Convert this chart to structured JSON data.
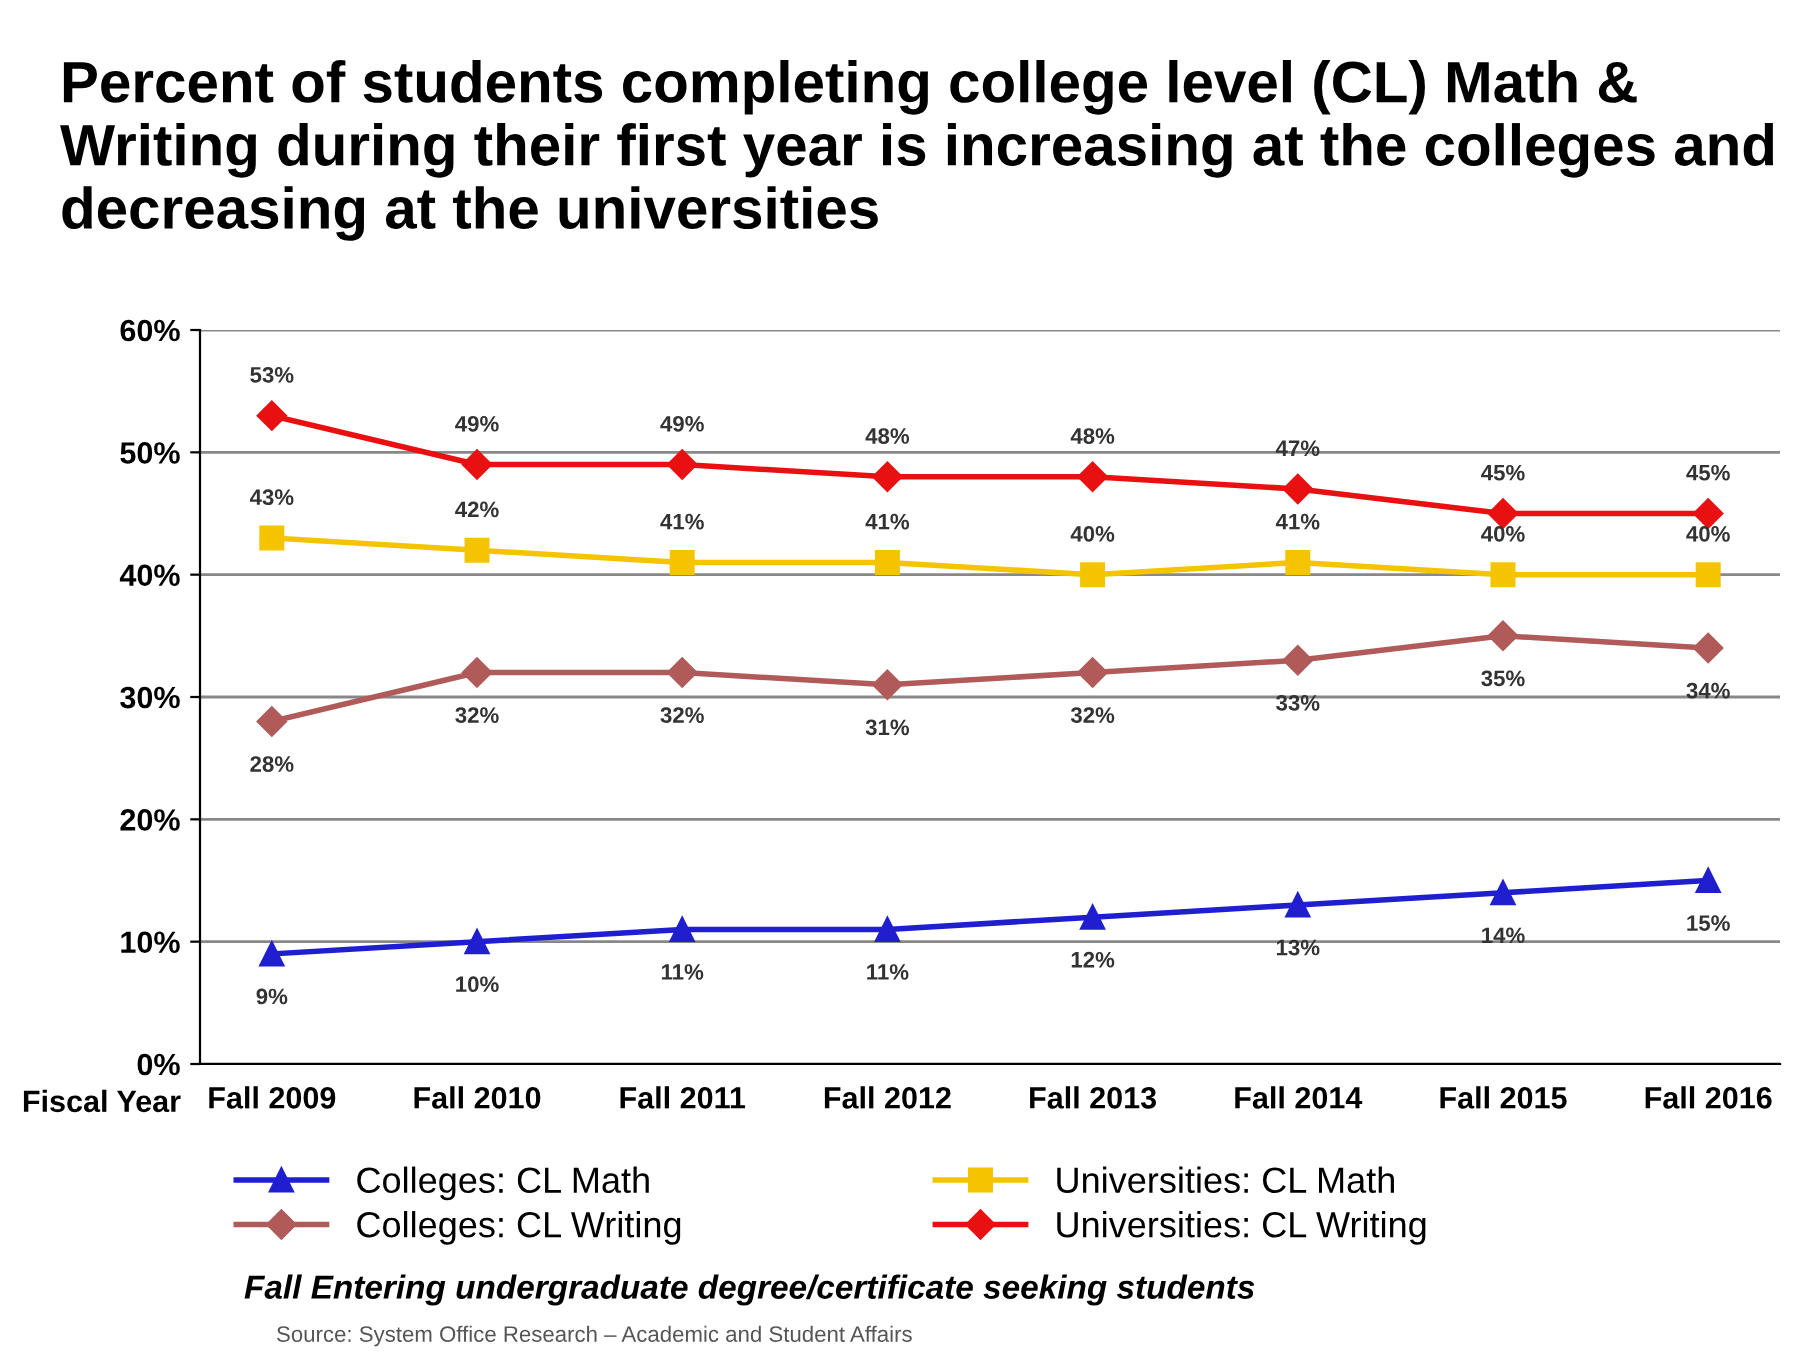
{
  "chart_data": {
    "type": "line",
    "title": "Percent of students completing college level (CL) Math & Writing during their first year is increasing at the colleges and decreasing at the universities",
    "xlabel": "Fiscal Year",
    "categories": [
      "Fall 2009",
      "Fall 2010",
      "Fall 2011",
      "Fall 2012",
      "Fall 2013",
      "Fall 2014",
      "Fall 2015",
      "Fall 2016"
    ],
    "series": [
      {
        "name": "Colleges: CL Math",
        "color": "#1f1fd0",
        "marker": "triangle",
        "values": [
          9,
          10,
          11,
          11,
          12,
          13,
          14,
          15
        ],
        "value_labels": [
          "9%",
          "10%",
          "11%",
          "11%",
          "12%",
          "13%",
          "14%",
          "15%"
        ]
      },
      {
        "name": "Universities: CL Math",
        "color": "#f5c400",
        "marker": "square",
        "values": [
          43,
          42,
          41,
          41,
          40,
          41,
          40,
          40
        ],
        "value_labels": [
          "43%",
          "42%",
          "41%",
          "41%",
          "40%",
          "41%",
          "40%",
          "40%"
        ]
      },
      {
        "name": "Colleges: CL Writing",
        "color": "#b05a5a",
        "marker": "diamond",
        "values": [
          28,
          32,
          32,
          31,
          32,
          33,
          35,
          34
        ],
        "value_labels": [
          "28%",
          "32%",
          "32%",
          "31%",
          "32%",
          "33%",
          "35%",
          "34%"
        ]
      },
      {
        "name": "Universities: CL Writing",
        "color": "#e81010",
        "marker": "diamond",
        "values": [
          53,
          49,
          49,
          48,
          48,
          47,
          45,
          45
        ],
        "value_labels": [
          "53%",
          "49%",
          "49%",
          "48%",
          "48%",
          "47%",
          "45%",
          "45%"
        ]
      }
    ],
    "ylim": [
      0,
      60
    ],
    "yticks": [
      {
        "value": 0,
        "label": "0%"
      },
      {
        "value": 10,
        "label": "10%"
      },
      {
        "value": 20,
        "label": "20%"
      },
      {
        "value": 30,
        "label": "30%"
      },
      {
        "value": 40,
        "label": "40%"
      },
      {
        "value": 50,
        "label": "50%"
      },
      {
        "value": 60,
        "label": "60%"
      }
    ],
    "grid": "y",
    "legend": "bottom",
    "annotations": [
      "Fall Entering undergraduate degree/certificate seeking students",
      "Source: System Office Research – Academic and Student Affairs"
    ]
  }
}
